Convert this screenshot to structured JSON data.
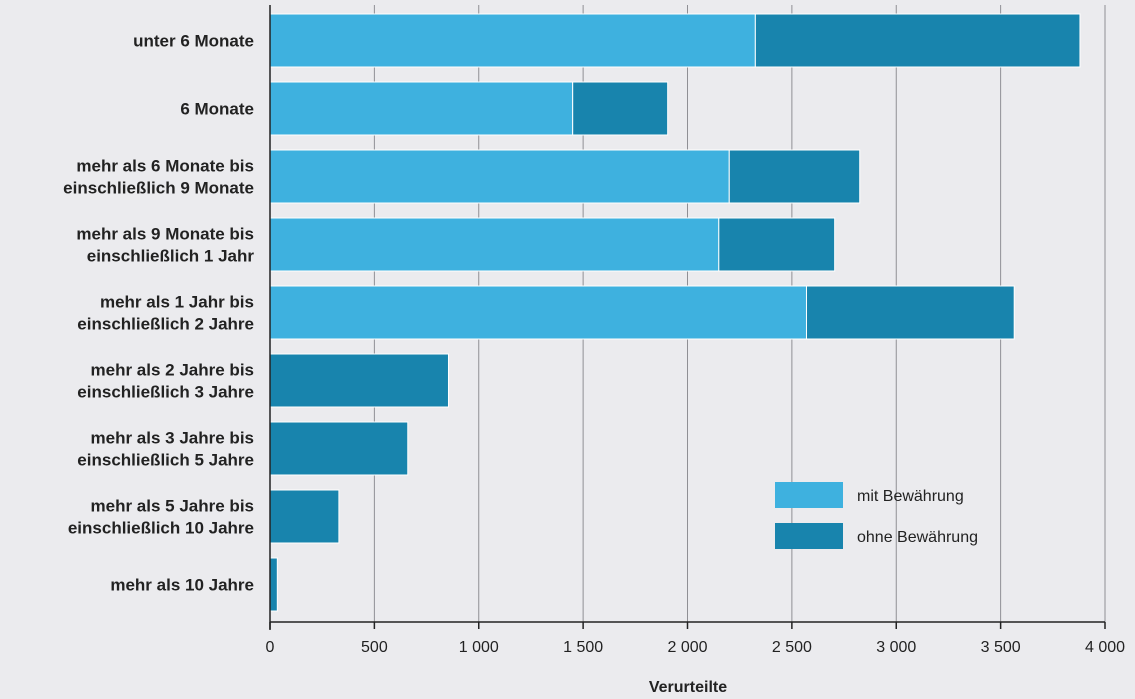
{
  "chart_data": {
    "type": "bar",
    "orientation": "horizontal",
    "stacked": true,
    "categories": [
      [
        "unter 6 Monate"
      ],
      [
        "6 Monate"
      ],
      [
        "mehr als 6 Monate bis",
        "einschließlich 9 Monate"
      ],
      [
        "mehr als 9 Monate bis",
        "einschließlich 1 Jahr"
      ],
      [
        "mehr als 1 Jahr bis",
        "einschließlich 2 Jahre"
      ],
      [
        "mehr als 2 Jahre bis",
        "einschließlich 3 Jahre"
      ],
      [
        "mehr als 3 Jahre bis",
        "einschließlich 5 Jahre"
      ],
      [
        "mehr als 5 Jahre bis",
        "einschließlich 10 Jahre"
      ],
      [
        "mehr als 10 Jahre"
      ]
    ],
    "series": [
      {
        "name": "mit Bewährung",
        "color": "#3eb1df",
        "values": [
          2325,
          1450,
          2200,
          2150,
          2570,
          0,
          0,
          0,
          0
        ]
      },
      {
        "name": "ohne Bewährung",
        "color": "#1884ad",
        "values": [
          1555,
          455,
          625,
          555,
          995,
          855,
          660,
          330,
          35
        ]
      }
    ],
    "xlabel": "Verurteilte",
    "ylabel": "",
    "xlim": [
      0,
      4000
    ],
    "xticks": [
      0,
      500,
      1000,
      1500,
      2000,
      2500,
      3000,
      3500,
      4000
    ],
    "xtick_labels": [
      "0",
      "500",
      "1 000",
      "1 500",
      "2 000",
      "2 500",
      "3 000",
      "3 500",
      "4 000"
    ],
    "grid": "vertical",
    "legend_position": "bottom-right",
    "colors": {
      "background": "#ebebee",
      "grid": "#8f8f94",
      "axis": "#222222"
    }
  }
}
